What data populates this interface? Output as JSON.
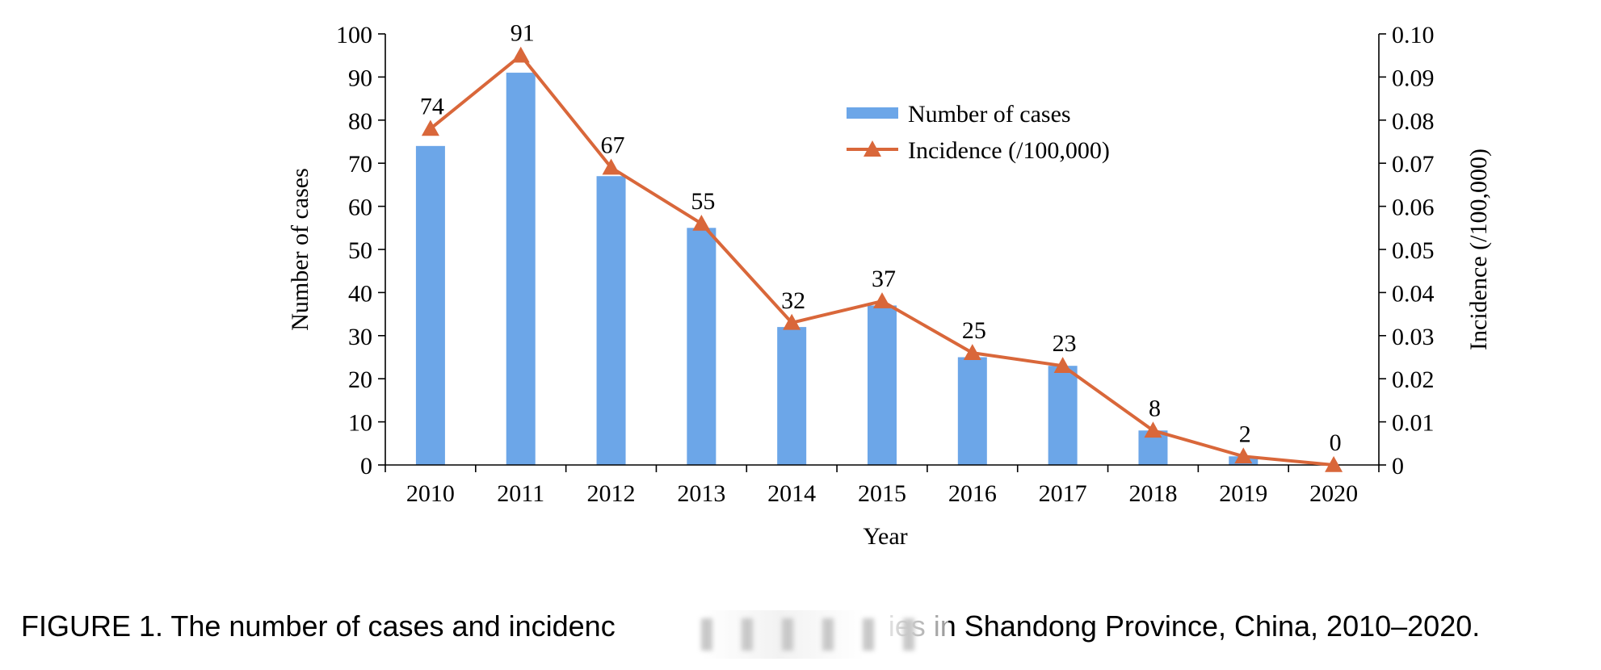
{
  "chart_data": {
    "type": "bar+line",
    "categories": [
      "2010",
      "2011",
      "2012",
      "2013",
      "2014",
      "2015",
      "2016",
      "2017",
      "2018",
      "2019",
      "2020"
    ],
    "series": [
      {
        "name": "Number of cases",
        "type": "bar",
        "axis": "left",
        "color": "#6ca6e8",
        "values": [
          74,
          91,
          67,
          55,
          32,
          37,
          25,
          23,
          8,
          2,
          0
        ]
      },
      {
        "name": "Incidence (/100,000)",
        "type": "line",
        "axis": "right",
        "color": "#d9673a",
        "marker": "triangle",
        "values": [
          0.078,
          0.095,
          0.069,
          0.056,
          0.033,
          0.038,
          0.026,
          0.023,
          0.008,
          0.002,
          0.0
        ]
      }
    ],
    "data_labels": [
      "74",
      "91",
      "67",
      "55",
      "32",
      "37",
      "25",
      "23",
      "8",
      "2",
      "0"
    ],
    "xlabel": "Year",
    "ylabel": "Number of cases",
    "y2label": "Incidence (/100,000)",
    "ylim": [
      0,
      100
    ],
    "y2lim": [
      0,
      0.1
    ],
    "yticks": [
      "0",
      "10",
      "20",
      "30",
      "40",
      "50",
      "60",
      "70",
      "80",
      "90",
      "100"
    ],
    "y2ticks": [
      "0",
      "0.01",
      "0.02",
      "0.03",
      "0.04",
      "0.05",
      "0.06",
      "0.07",
      "0.08",
      "0.09",
      "0.10"
    ],
    "grid": false,
    "legend_position": "top-center"
  },
  "caption": {
    "text_before": "FIGURE 1. The number of cases and incidenc",
    "text_after": "ies in Shandong Province, China, 2010–2020."
  }
}
